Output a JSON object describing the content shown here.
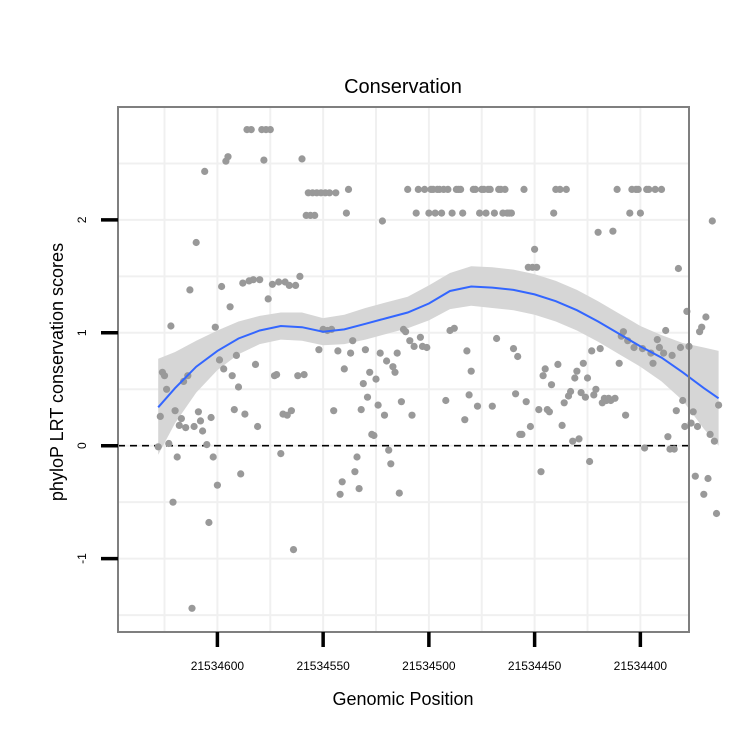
{
  "chart_data": {
    "type": "scatter",
    "title": "Conservation",
    "xlabel": "Genomic Position",
    "ylabel": "phyloP LRT conservation scores",
    "x_reversed": true,
    "xlim": [
      21534377,
      21534647
    ],
    "ylim": [
      -1.65,
      3.0
    ],
    "x_ticks": [
      {
        "value": 21534600,
        "label": "21534600"
      },
      {
        "value": 21534550,
        "label": "21534550"
      },
      {
        "value": 21534500,
        "label": "21534500"
      },
      {
        "value": 21534450,
        "label": "21534450"
      },
      {
        "value": 21534400,
        "label": "21534400"
      }
    ],
    "y_ticks": [
      {
        "value": -1,
        "label": "-1"
      },
      {
        "value": 0,
        "label": "0"
      },
      {
        "value": 1,
        "label": "1"
      },
      {
        "value": 2,
        "label": "2"
      }
    ],
    "grid": true,
    "reference_line": {
      "y": 0,
      "style": "dashed",
      "color": "#000000"
    },
    "colors": {
      "points": "#999999",
      "smooth": "#3366FF",
      "band": "#d6d6d6",
      "panel_border": "#7f7f7f",
      "grid": "#f0f0f0"
    },
    "points": [
      [
        21534628,
        -0.01
      ],
      [
        21534627,
        0.26
      ],
      [
        21534626,
        0.65
      ],
      [
        21534625,
        0.62
      ],
      [
        21534624,
        0.5
      ],
      [
        21534623,
        0.02
      ],
      [
        21534622,
        1.06
      ],
      [
        21534621,
        -0.5
      ],
      [
        21534620,
        0.31
      ],
      [
        21534619,
        -0.1
      ],
      [
        21534618,
        0.18
      ],
      [
        21534617,
        0.24
      ],
      [
        21534616,
        0.57
      ],
      [
        21534615,
        0.16
      ],
      [
        21534614,
        0.62
      ],
      [
        21534613,
        1.38
      ],
      [
        21534612,
        -1.44
      ],
      [
        21534611,
        0.17
      ],
      [
        21534610,
        1.8
      ],
      [
        21534609,
        0.3
      ],
      [
        21534608,
        0.22
      ],
      [
        21534607,
        0.13
      ],
      [
        21534606,
        2.43
      ],
      [
        21534605,
        0.01
      ],
      [
        21534604,
        -0.68
      ],
      [
        21534603,
        0.25
      ],
      [
        21534602,
        -0.1
      ],
      [
        21534601,
        1.05
      ],
      [
        21534600,
        -0.35
      ],
      [
        21534599,
        0.76
      ],
      [
        21534598,
        1.41
      ],
      [
        21534597,
        0.68
      ],
      [
        21534596,
        2.52
      ],
      [
        21534595,
        2.56
      ],
      [
        21534594,
        1.23
      ],
      [
        21534593,
        0.62
      ],
      [
        21534592,
        0.32
      ],
      [
        21534591,
        0.8
      ],
      [
        21534590,
        0.52
      ],
      [
        21534589,
        -0.25
      ],
      [
        21534588,
        1.44
      ],
      [
        21534587,
        0.28
      ],
      [
        21534586,
        2.8
      ],
      [
        21534585,
        1.46
      ],
      [
        21534584,
        2.8
      ],
      [
        21534583,
        1.47
      ],
      [
        21534582,
        0.72
      ],
      [
        21534581,
        0.17
      ],
      [
        21534580,
        1.47
      ],
      [
        21534579,
        2.8
      ],
      [
        21534578,
        2.53
      ],
      [
        21534577,
        2.8
      ],
      [
        21534576,
        1.3
      ],
      [
        21534575,
        2.8
      ],
      [
        21534574,
        1.43
      ],
      [
        21534573,
        0.62
      ],
      [
        21534572,
        0.63
      ],
      [
        21534571,
        1.45
      ],
      [
        21534570,
        -0.07
      ],
      [
        21534569,
        0.28
      ],
      [
        21534568,
        1.45
      ],
      [
        21534567,
        0.27
      ],
      [
        21534566,
        1.42
      ],
      [
        21534565,
        0.31
      ],
      [
        21534564,
        -0.92
      ],
      [
        21534563,
        1.42
      ],
      [
        21534562,
        0.62
      ],
      [
        21534561,
        1.5
      ],
      [
        21534560,
        2.54
      ],
      [
        21534559,
        0.63
      ],
      [
        21534558,
        2.04
      ],
      [
        21534557,
        2.24
      ],
      [
        21534556,
        2.04
      ],
      [
        21534555,
        2.24
      ],
      [
        21534554,
        2.04
      ],
      [
        21534553,
        2.24
      ],
      [
        21534552,
        0.85
      ],
      [
        21534551,
        2.24
      ],
      [
        21534550,
        1.03
      ],
      [
        21534549,
        2.24
      ],
      [
        21534548,
        1.02
      ],
      [
        21534547,
        2.24
      ],
      [
        21534546,
        1.03
      ],
      [
        21534545,
        0.31
      ],
      [
        21534544,
        2.24
      ],
      [
        21534543,
        0.84
      ],
      [
        21534542,
        -0.43
      ],
      [
        21534541,
        -0.32
      ],
      [
        21534540,
        0.68
      ],
      [
        21534539,
        2.06
      ],
      [
        21534538,
        2.27
      ],
      [
        21534537,
        0.82
      ],
      [
        21534536,
        0.93
      ],
      [
        21534535,
        -0.23
      ],
      [
        21534534,
        -0.1
      ],
      [
        21534533,
        -0.38
      ],
      [
        21534532,
        0.32
      ],
      [
        21534531,
        0.55
      ],
      [
        21534530,
        0.85
      ],
      [
        21534529,
        0.43
      ],
      [
        21534528,
        0.65
      ],
      [
        21534527,
        0.1
      ],
      [
        21534526,
        0.09
      ],
      [
        21534525,
        0.59
      ],
      [
        21534524,
        0.36
      ],
      [
        21534523,
        0.82
      ],
      [
        21534522,
        1.99
      ],
      [
        21534521,
        0.27
      ],
      [
        21534520,
        0.75
      ],
      [
        21534519,
        -0.04
      ],
      [
        21534518,
        -0.16
      ],
      [
        21534517,
        0.7
      ],
      [
        21534516,
        0.65
      ],
      [
        21534515,
        0.82
      ],
      [
        21534514,
        -0.42
      ],
      [
        21534513,
        0.39
      ],
      [
        21534512,
        1.03
      ],
      [
        21534511,
        1.01
      ],
      [
        21534510,
        2.27
      ],
      [
        21534509,
        0.93
      ],
      [
        21534508,
        0.27
      ],
      [
        21534507,
        0.88
      ],
      [
        21534506,
        2.06
      ],
      [
        21534505,
        2.27
      ],
      [
        21534504,
        0.96
      ],
      [
        21534503,
        0.88
      ],
      [
        21534502,
        2.27
      ],
      [
        21534501,
        0.87
      ],
      [
        21534500,
        2.06
      ],
      [
        21534499,
        2.27
      ],
      [
        21534498,
        2.27
      ],
      [
        21534497,
        2.06
      ],
      [
        21534496,
        2.27
      ],
      [
        21534495,
        2.27
      ],
      [
        21534494,
        2.06
      ],
      [
        21534493,
        2.27
      ],
      [
        21534492,
        0.4
      ],
      [
        21534491,
        2.27
      ],
      [
        21534490,
        1.02
      ],
      [
        21534489,
        2.06
      ],
      [
        21534488,
        1.04
      ],
      [
        21534487,
        2.27
      ],
      [
        21534486,
        2.27
      ],
      [
        21534485,
        2.27
      ],
      [
        21534484,
        2.06
      ],
      [
        21534483,
        0.23
      ],
      [
        21534482,
        0.84
      ],
      [
        21534481,
        0.45
      ],
      [
        21534480,
        0.66
      ],
      [
        21534479,
        2.27
      ],
      [
        21534478,
        2.27
      ],
      [
        21534477,
        0.35
      ],
      [
        21534476,
        2.06
      ],
      [
        21534475,
        2.27
      ],
      [
        21534474,
        2.27
      ],
      [
        21534473,
        2.06
      ],
      [
        21534472,
        2.27
      ],
      [
        21534471,
        2.27
      ],
      [
        21534470,
        0.35
      ],
      [
        21534469,
        2.06
      ],
      [
        21534468,
        0.95
      ],
      [
        21534467,
        2.27
      ],
      [
        21534466,
        2.27
      ],
      [
        21534465,
        2.06
      ],
      [
        21534464,
        2.27
      ],
      [
        21534463,
        2.06
      ],
      [
        21534462,
        2.06
      ],
      [
        21534461,
        2.06
      ],
      [
        21534460,
        0.86
      ],
      [
        21534459,
        0.46
      ],
      [
        21534458,
        0.79
      ],
      [
        21534457,
        0.1
      ],
      [
        21534456,
        0.1
      ],
      [
        21534455,
        2.27
      ],
      [
        21534454,
        0.39
      ],
      [
        21534453,
        1.58
      ],
      [
        21534452,
        0.17
      ],
      [
        21534451,
        1.58
      ],
      [
        21534450,
        1.74
      ],
      [
        21534449,
        1.58
      ],
      [
        21534448,
        0.32
      ],
      [
        21534447,
        -0.23
      ],
      [
        21534446,
        0.62
      ],
      [
        21534445,
        0.68
      ],
      [
        21534444,
        0.32
      ],
      [
        21534443,
        0.3
      ],
      [
        21534442,
        0.54
      ],
      [
        21534441,
        2.06
      ],
      [
        21534440,
        2.27
      ],
      [
        21534439,
        0.72
      ],
      [
        21534438,
        2.27
      ],
      [
        21534437,
        0.18
      ],
      [
        21534436,
        0.38
      ],
      [
        21534435,
        2.27
      ],
      [
        21534434,
        0.44
      ],
      [
        21534433,
        0.48
      ],
      [
        21534432,
        0.04
      ],
      [
        21534431,
        0.6
      ],
      [
        21534430,
        0.66
      ],
      [
        21534429,
        0.06
      ],
      [
        21534428,
        0.47
      ],
      [
        21534427,
        0.73
      ],
      [
        21534426,
        0.43
      ],
      [
        21534425,
        0.6
      ],
      [
        21534424,
        -0.14
      ],
      [
        21534423,
        0.84
      ],
      [
        21534422,
        0.45
      ],
      [
        21534421,
        0.5
      ],
      [
        21534420,
        1.89
      ],
      [
        21534419,
        0.86
      ],
      [
        21534418,
        0.38
      ],
      [
        21534417,
        0.42
      ],
      [
        21534416,
        0.4
      ],
      [
        21534415,
        0.42
      ],
      [
        21534414,
        0.4
      ],
      [
        21534413,
        1.9
      ],
      [
        21534412,
        0.42
      ],
      [
        21534411,
        2.27
      ],
      [
        21534410,
        0.73
      ],
      [
        21534409,
        0.97
      ],
      [
        21534408,
        1.01
      ],
      [
        21534407,
        0.27
      ],
      [
        21534406,
        0.93
      ],
      [
        21534405,
        2.06
      ],
      [
        21534404,
        2.27
      ],
      [
        21534403,
        0.87
      ],
      [
        21534402,
        2.27
      ],
      [
        21534401,
        2.27
      ],
      [
        21534400,
        2.06
      ],
      [
        21534399,
        0.86
      ],
      [
        21534398,
        -0.02
      ],
      [
        21534397,
        2.27
      ],
      [
        21534396,
        2.27
      ],
      [
        21534395,
        0.82
      ],
      [
        21534394,
        0.73
      ],
      [
        21534393,
        2.27
      ],
      [
        21534392,
        0.94
      ],
      [
        21534391,
        0.87
      ],
      [
        21534390,
        2.27
      ],
      [
        21534389,
        0.82
      ],
      [
        21534388,
        1.02
      ],
      [
        21534387,
        0.08
      ],
      [
        21534386,
        -0.03
      ],
      [
        21534385,
        0.8
      ],
      [
        21534384,
        -0.03
      ],
      [
        21534383,
        0.31
      ],
      [
        21534382,
        1.57
      ],
      [
        21534381,
        0.87
      ],
      [
        21534380,
        0.4
      ],
      [
        21534379,
        0.17
      ],
      [
        21534378,
        1.19
      ],
      [
        21534377,
        0.88
      ],
      [
        21534376,
        0.2
      ],
      [
        21534375,
        0.3
      ],
      [
        21534374,
        -0.27
      ],
      [
        21534373,
        0.17
      ],
      [
        21534372,
        1.01
      ],
      [
        21534371,
        1.05
      ],
      [
        21534370,
        -0.43
      ],
      [
        21534369,
        1.14
      ],
      [
        21534368,
        -0.29
      ],
      [
        21534367,
        0.1
      ],
      [
        21534366,
        1.99
      ],
      [
        21534365,
        0.04
      ],
      [
        21534364,
        -0.6
      ],
      [
        21534363,
        0.36
      ]
    ],
    "smooth": {
      "x": [
        21534628,
        21534620,
        21534610,
        21534600,
        21534590,
        21534580,
        21534570,
        21534560,
        21534550,
        21534540,
        21534530,
        21534520,
        21534510,
        21534500,
        21534490,
        21534480,
        21534470,
        21534460,
        21534450,
        21534440,
        21534430,
        21534420,
        21534410,
        21534400,
        21534390,
        21534380,
        21534370,
        21534363
      ],
      "y": [
        0.34,
        0.51,
        0.7,
        0.84,
        0.95,
        1.02,
        1.06,
        1.05,
        1.01,
        1.03,
        1.08,
        1.13,
        1.18,
        1.26,
        1.37,
        1.41,
        1.4,
        1.38,
        1.34,
        1.28,
        1.2,
        1.1,
        0.99,
        0.88,
        0.78,
        0.65,
        0.51,
        0.42
      ],
      "lower": [
        -0.08,
        0.2,
        0.47,
        0.67,
        0.81,
        0.9,
        0.94,
        0.93,
        0.89,
        0.9,
        0.94,
        0.99,
        1.04,
        1.11,
        1.21,
        1.24,
        1.22,
        1.2,
        1.16,
        1.1,
        1.02,
        0.92,
        0.81,
        0.7,
        0.57,
        0.4,
        0.15,
        0.0
      ],
      "upper": [
        0.77,
        0.83,
        0.93,
        1.02,
        1.1,
        1.15,
        1.18,
        1.18,
        1.13,
        1.16,
        1.22,
        1.27,
        1.32,
        1.42,
        1.53,
        1.59,
        1.58,
        1.56,
        1.52,
        1.46,
        1.38,
        1.28,
        1.17,
        1.06,
        0.98,
        0.91,
        0.87,
        0.84
      ]
    }
  }
}
